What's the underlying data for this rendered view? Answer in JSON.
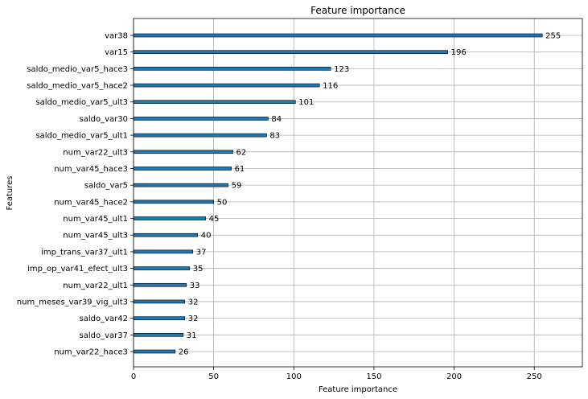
{
  "chart_data": {
    "type": "bar",
    "orientation": "horizontal",
    "title": "Feature importance",
    "xlabel": "Feature importance",
    "ylabel": "Features",
    "xlim": [
      0,
      280
    ],
    "xticks": [
      0,
      50,
      100,
      150,
      200,
      250
    ],
    "grid": true,
    "categories": [
      "var38",
      "var15",
      "saldo_medio_var5_hace3",
      "saldo_medio_var5_hace2",
      "saldo_medio_var5_ult3",
      "saldo_var30",
      "saldo_medio_var5_ult1",
      "num_var22_ult3",
      "num_var45_hace3",
      "saldo_var5",
      "num_var45_hace2",
      "num_var45_ult1",
      "num_var45_ult3",
      "imp_trans_var37_ult1",
      "imp_op_var41_efect_ult3",
      "num_var22_ult1",
      "num_meses_var39_vig_ult3",
      "saldo_var42",
      "saldo_var37",
      "num_var22_hace3"
    ],
    "values": [
      255,
      196,
      123,
      116,
      101,
      84,
      83,
      62,
      61,
      59,
      50,
      45,
      40,
      37,
      35,
      33,
      32,
      32,
      31,
      26
    ],
    "colors": {
      "bar": "#1f77b4",
      "grid": "#b0b0b0"
    }
  }
}
